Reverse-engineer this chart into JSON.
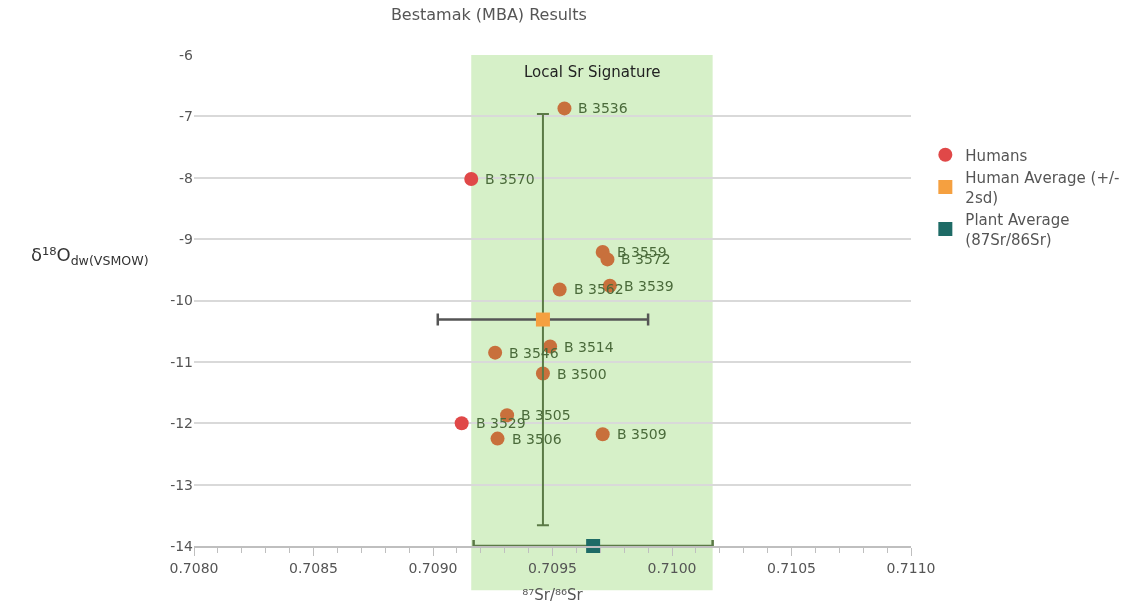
{
  "chart_data": {
    "type": "scatter",
    "title": "Bestamak (MBA) Results",
    "xlabel": "⁸⁷Sr/⁸⁶Sr",
    "ylabel": "δ¹⁸O$_{dw(VSMOW)}$",
    "xlim": [
      0.708,
      0.711
    ],
    "xticks": [
      {
        "value": 0.708,
        "label": "0.7080"
      },
      {
        "value": 0.7085,
        "label": "0.7085"
      },
      {
        "value": 0.709,
        "label": "0.7090"
      },
      {
        "value": 0.7095,
        "label": "0.7095"
      },
      {
        "value": 0.71,
        "label": "0.7100"
      },
      {
        "value": 0.7105,
        "label": "0.7105"
      },
      {
        "value": 0.711,
        "label": "0.7110"
      }
    ],
    "ylim": [
      -14,
      -6
    ],
    "yticks": [
      -14,
      -13,
      -12,
      -11,
      -10,
      -9,
      -8,
      -7,
      -6
    ],
    "grid": "y",
    "legend": "right",
    "bands": [
      {
        "axis": "x",
        "from": 0.70916,
        "to": 0.71017,
        "label": "Local Sr Signature",
        "color": "#d6f0c8"
      }
    ],
    "series": [
      {
        "color": "#c8703c",
        "marker": "circle",
        "x": [
          0.70955,
          0.70971,
          0.70973,
          0.70974,
          0.70953,
          0.70949,
          0.70926,
          0.70946,
          0.70931,
          0.70927,
          0.70971
        ],
        "values": [
          -6.87,
          -9.21,
          -9.33,
          -9.76,
          -9.82,
          -10.75,
          -10.85,
          -11.19,
          -11.87,
          -12.25,
          -12.18
        ]
      },
      {
        "name": "Humans",
        "color": "#e04848",
        "marker": "circle",
        "x": [
          0.70916,
          0.70912
        ],
        "values": [
          -8.02,
          -12.0
        ]
      },
      {
        "name": "Human Average (+/- 2sd)",
        "color": "#f5a040",
        "marker": "square",
        "x": [
          0.70946
        ],
        "values": [
          -10.31
        ],
        "errors": [
          3.35
        ],
        "xerrors": [
          0.00044
        ]
      },
      {
        "name": "Plant Average (87Sr/86Sr)",
        "color": "#1e6b66",
        "marker": "square",
        "x": [
          0.70967
        ],
        "values": [
          -14
        ],
        "xerrors": [
          0.0005
        ]
      }
    ],
    "annotations": [
      {
        "text": "B 3536",
        "x": 0.70955,
        "y": -6.87
      },
      {
        "text": "B 3559",
        "x": 0.70971,
        "y": -9.21
      },
      {
        "text": "B 3572",
        "x": 0.70973,
        "y": -9.33
      },
      {
        "text": "B 3539",
        "x": 0.70974,
        "y": -9.76
      },
      {
        "text": "B 3562",
        "x": 0.70953,
        "y": -9.82
      },
      {
        "text": "B 3514",
        "x": 0.70949,
        "y": -10.75
      },
      {
        "text": "B 3546",
        "x": 0.70926,
        "y": -10.85
      },
      {
        "text": "B 3500",
        "x": 0.70946,
        "y": -11.19
      },
      {
        "text": "B 3505",
        "x": 0.70931,
        "y": -11.87
      },
      {
        "text": "B 3506",
        "x": 0.70927,
        "y": -12.25
      },
      {
        "text": "B 3509",
        "x": 0.70971,
        "y": -12.18
      },
      {
        "text": "B 3570",
        "x": 0.70916,
        "y": -8.02
      },
      {
        "text": "B 3529",
        "x": 0.70912,
        "y": -12.0
      }
    ]
  }
}
